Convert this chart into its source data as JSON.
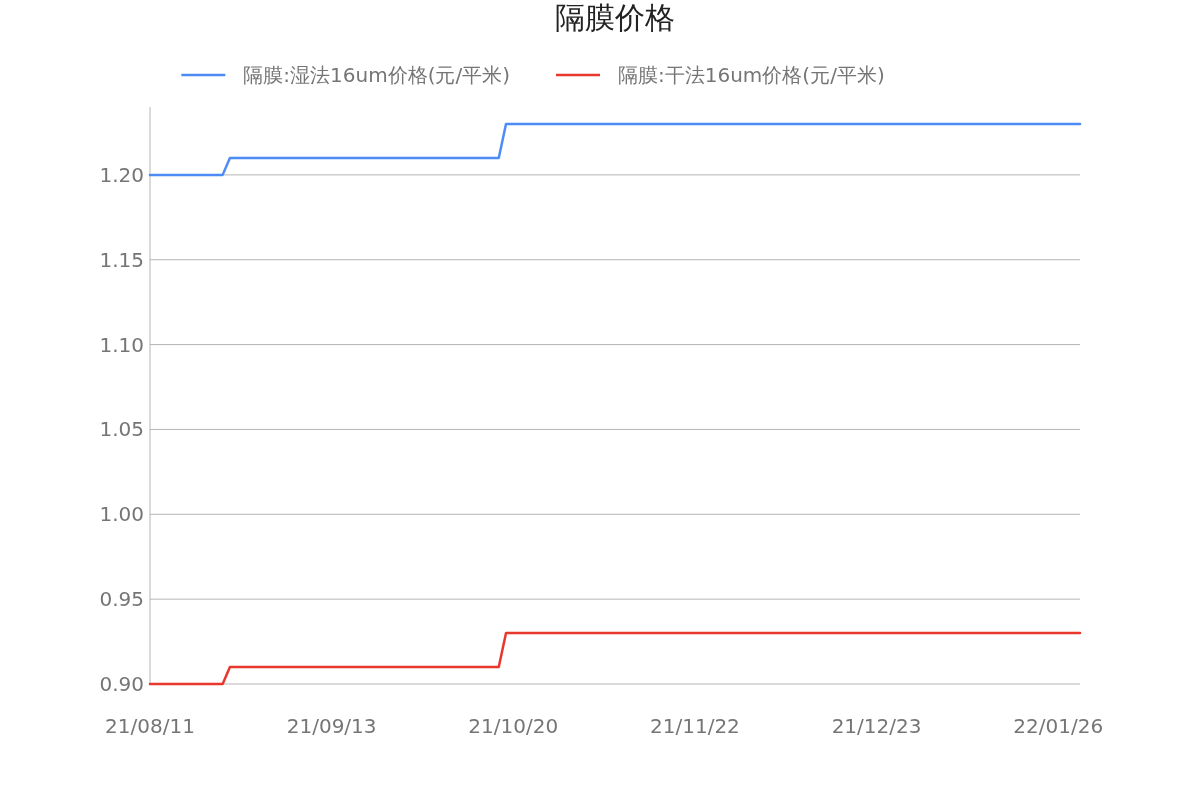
{
  "chart_data": {
    "type": "line",
    "title": "隔膜价格",
    "categories": [
      "21/08/11",
      null,
      null,
      null,
      null,
      null,
      null,
      null,
      null,
      null,
      null,
      null,
      null,
      null,
      null,
      null,
      null,
      null,
      null,
      null,
      null,
      null,
      null,
      null,
      null,
      "21/09/13",
      null,
      null,
      null,
      null,
      null,
      null,
      null,
      null,
      null,
      null,
      null,
      null,
      null,
      null,
      null,
      null,
      null,
      null,
      null,
      null,
      null,
      null,
      null,
      null,
      "21/10/20",
      null,
      null,
      null,
      null,
      null,
      null,
      null,
      null,
      null,
      null,
      null,
      null,
      null,
      null,
      null,
      null,
      null,
      null,
      null,
      null,
      null,
      null,
      null,
      null,
      "21/11/22",
      null,
      null,
      null,
      null,
      null,
      null,
      null,
      null,
      null,
      null,
      null,
      null,
      null,
      null,
      null,
      null,
      null,
      null,
      null,
      null,
      null,
      null,
      null,
      null,
      "21/12/23",
      null,
      null,
      null,
      null,
      null,
      null,
      null,
      null,
      null,
      null,
      null,
      null,
      null,
      null,
      null,
      null,
      null,
      null,
      null,
      null,
      null,
      null,
      null,
      null,
      "22/01/26",
      null,
      null,
      null
    ],
    "series": [
      {
        "name": "隔膜:湿法16um价格(元/平米)",
        "color": "#4e8cf5",
        "values": [
          1.2,
          1.2,
          1.2,
          1.2,
          1.2,
          1.2,
          1.2,
          1.2,
          1.2,
          1.2,
          1.2,
          1.21,
          1.21,
          1.21,
          1.21,
          1.21,
          1.21,
          1.21,
          1.21,
          1.21,
          1.21,
          1.21,
          1.21,
          1.21,
          1.21,
          1.21,
          1.21,
          1.21,
          1.21,
          1.21,
          1.21,
          1.21,
          1.21,
          1.21,
          1.21,
          1.21,
          1.21,
          1.21,
          1.21,
          1.21,
          1.21,
          1.21,
          1.21,
          1.21,
          1.21,
          1.21,
          1.21,
          1.21,
          1.21,
          1.23,
          1.23,
          1.23,
          1.23,
          1.23,
          1.23,
          1.23,
          1.23,
          1.23,
          1.23,
          1.23,
          1.23,
          1.23,
          1.23,
          1.23,
          1.23,
          1.23,
          1.23,
          1.23,
          1.23,
          1.23,
          1.23,
          1.23,
          1.23,
          1.23,
          1.23,
          1.23,
          1.23,
          1.23,
          1.23,
          1.23,
          1.23,
          1.23,
          1.23,
          1.23,
          1.23,
          1.23,
          1.23,
          1.23,
          1.23,
          1.23,
          1.23,
          1.23,
          1.23,
          1.23,
          1.23,
          1.23,
          1.23,
          1.23,
          1.23,
          1.23,
          1.23,
          1.23,
          1.23,
          1.23,
          1.23,
          1.23,
          1.23,
          1.23,
          1.23,
          1.23,
          1.23,
          1.23,
          1.23,
          1.23,
          1.23,
          1.23,
          1.23,
          1.23,
          1.23,
          1.23,
          1.23,
          1.23,
          1.23,
          1.23,
          1.23,
          1.23,
          1.23,
          1.23,
          1.23
        ]
      },
      {
        "name": "隔膜:干法16um价格(元/平米)",
        "color": "#e8372c",
        "values": [
          0.9,
          0.9,
          0.9,
          0.9,
          0.9,
          0.9,
          0.9,
          0.9,
          0.9,
          0.9,
          0.9,
          0.91,
          0.91,
          0.91,
          0.91,
          0.91,
          0.91,
          0.91,
          0.91,
          0.91,
          0.91,
          0.91,
          0.91,
          0.91,
          0.91,
          0.91,
          0.91,
          0.91,
          0.91,
          0.91,
          0.91,
          0.91,
          0.91,
          0.91,
          0.91,
          0.91,
          0.91,
          0.91,
          0.91,
          0.91,
          0.91,
          0.91,
          0.91,
          0.91,
          0.91,
          0.91,
          0.91,
          0.91,
          0.91,
          0.93,
          0.93,
          0.93,
          0.93,
          0.93,
          0.93,
          0.93,
          0.93,
          0.93,
          0.93,
          0.93,
          0.93,
          0.93,
          0.93,
          0.93,
          0.93,
          0.93,
          0.93,
          0.93,
          0.93,
          0.93,
          0.93,
          0.93,
          0.93,
          0.93,
          0.93,
          0.93,
          0.93,
          0.93,
          0.93,
          0.93,
          0.93,
          0.93,
          0.93,
          0.93,
          0.93,
          0.93,
          0.93,
          0.93,
          0.93,
          0.93,
          0.93,
          0.93,
          0.93,
          0.93,
          0.93,
          0.93,
          0.93,
          0.93,
          0.93,
          0.93,
          0.93,
          0.93,
          0.93,
          0.93,
          0.93,
          0.93,
          0.93,
          0.93,
          0.93,
          0.93,
          0.93,
          0.93,
          0.93,
          0.93,
          0.93,
          0.93,
          0.93,
          0.93,
          0.93,
          0.93,
          0.93,
          0.93,
          0.93,
          0.93,
          0.93,
          0.93,
          0.93,
          0.93,
          0.93
        ]
      }
    ],
    "ylim": [
      0.9,
      1.24
    ],
    "yticks": [
      {
        "value": 0.9,
        "label": "0.90"
      },
      {
        "value": 0.95,
        "label": "0.95"
      },
      {
        "value": 1.0,
        "label": "1.00"
      },
      {
        "value": 1.05,
        "label": "1.05"
      },
      {
        "value": 1.1,
        "label": "1.10"
      },
      {
        "value": 1.15,
        "label": "1.15"
      },
      {
        "value": 1.2,
        "label": "1.20"
      }
    ],
    "grid": "y",
    "legend": "top"
  }
}
